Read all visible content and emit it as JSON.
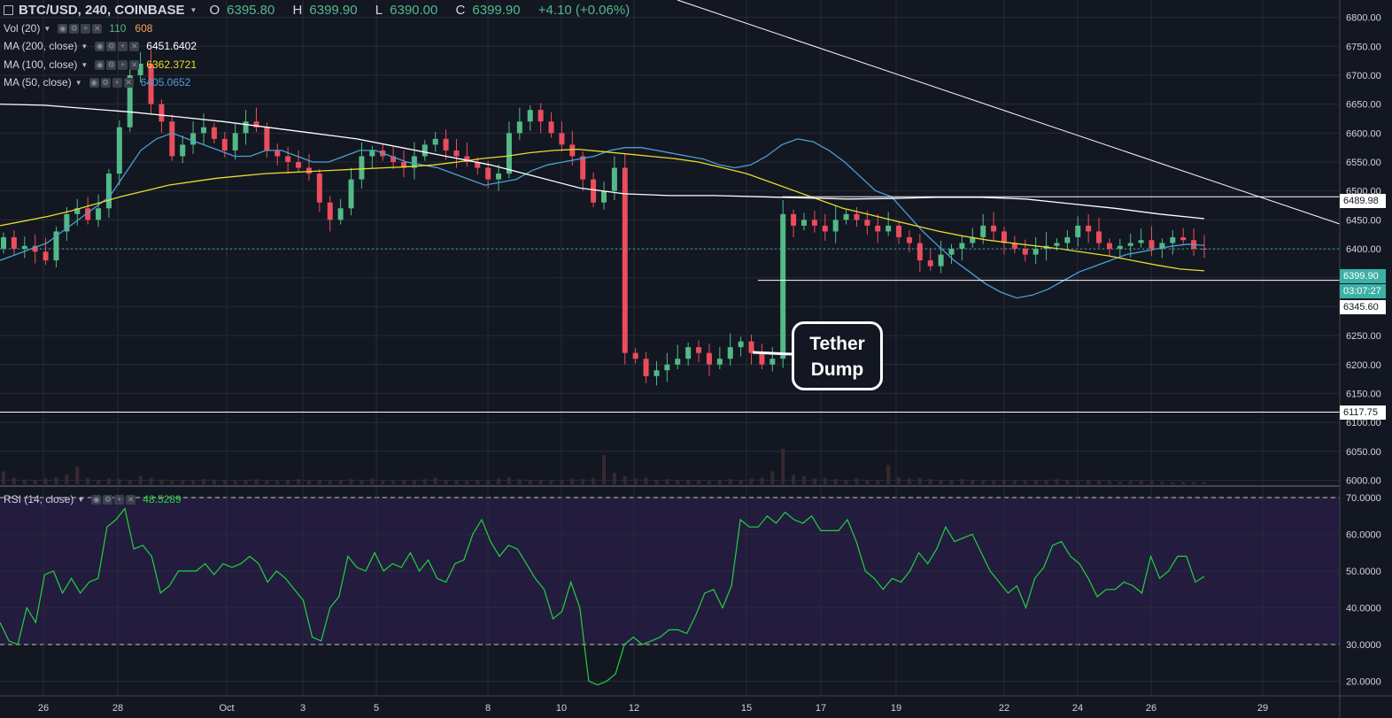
{
  "header": {
    "symbol": "BTC/USD, 240, COINBASE",
    "open_label": "O",
    "open": "6395.80",
    "high_label": "H",
    "high": "6399.90",
    "low_label": "L",
    "low": "6390.00",
    "close_label": "C",
    "close": "6399.90",
    "change": "+4.10 (+0.06%)"
  },
  "indicators": {
    "vol": {
      "label": "Vol (20)",
      "value1": "110",
      "value2": "608"
    },
    "ma200": {
      "label": "MA (200, close)",
      "value": "6451.6402",
      "color": "#ffffff"
    },
    "ma100": {
      "label": "MA (100, close)",
      "value": "6362.3721",
      "color": "#e8dc2a"
    },
    "ma50": {
      "label": "MA (50, close)",
      "value": "6405.0652",
      "color": "#4aa1d3"
    },
    "rsi": {
      "label": "RSI (14, close)",
      "value": "48.5289",
      "color": "#1fd33a"
    }
  },
  "annotation": {
    "line1": "Tether",
    "line2": "Dump"
  },
  "price_tags": {
    "top": "6489.98",
    "current": "6399.90",
    "countdown": "03:07:27",
    "bottom": "6345.60",
    "support": "6117.75"
  },
  "colors": {
    "up": "#53b987",
    "down": "#eb4d5c",
    "background": "#131722",
    "grid": "#262b36",
    "rsi_band": "#2a1f4a"
  },
  "chart_data": {
    "type": "candlestick",
    "interval": "240",
    "price_axis": {
      "ylim": [
        5990,
        6830
      ],
      "ticks": [
        "6000.00",
        "6050.00",
        "6100.00",
        "6150.00",
        "6200.00",
        "6250.00",
        "6300.00",
        "6350.00",
        "6400.00",
        "6450.00",
        "6500.00",
        "6550.00",
        "6600.00",
        "6650.00",
        "6700.00",
        "6750.00",
        "6800.00"
      ]
    },
    "rsi_axis": {
      "ylim": [
        16,
        72
      ],
      "ticks": [
        "20.0000",
        "30.0000",
        "40.0000",
        "50.0000",
        "60.0000",
        "70.0000"
      ],
      "bands": [
        30,
        70
      ]
    },
    "x_labels": [
      "26",
      "28",
      "Oct",
      "3",
      "5",
      "8",
      "10",
      "12",
      "15",
      "17",
      "19",
      "22",
      "24",
      "26",
      "29"
    ],
    "horizontal_levels": [
      6489.98,
      6345.6,
      6117.75
    ],
    "close_series": [
      6420,
      6400,
      6405,
      6395,
      6380,
      6430,
      6460,
      6470,
      6450,
      6470,
      6530,
      6610,
      6700,
      6720,
      6650,
      6620,
      6560,
      6580,
      6600,
      6610,
      6590,
      6570,
      6600,
      6620,
      6610,
      6570,
      6560,
      6550,
      6540,
      6530,
      6480,
      6450,
      6470,
      6520,
      6560,
      6570,
      6560,
      6550,
      6540,
      6560,
      6580,
      6590,
      6570,
      6560,
      6550,
      6540,
      6520,
      6530,
      6600,
      6620,
      6640,
      6620,
      6600,
      6580,
      6560,
      6520,
      6480,
      6500,
      6540,
      6220,
      6210,
      6180,
      6190,
      6200,
      6210,
      6230,
      6220,
      6200,
      6210,
      6230,
      6240,
      6220,
      6200,
      6210,
      6460,
      6440,
      6450,
      6440,
      6430,
      6450,
      6460,
      6450,
      6440,
      6430,
      6440,
      6420,
      6410,
      6380,
      6370,
      6390,
      6400,
      6410,
      6420,
      6440,
      6430,
      6410,
      6400,
      6390,
      6400,
      6405,
      6410,
      6420,
      6440,
      6430,
      6410,
      6400,
      6405,
      6410,
      6415,
      6400,
      6410,
      6420,
      6415,
      6400,
      6399.9
    ],
    "volume_series": [
      40,
      20,
      15,
      12,
      18,
      22,
      30,
      55,
      20,
      14,
      18,
      16,
      12,
      25,
      20,
      15,
      10,
      12,
      14,
      16,
      15,
      12,
      10,
      14,
      16,
      12,
      10,
      14,
      16,
      12,
      14,
      10,
      12,
      16,
      14,
      18,
      12,
      10,
      14,
      12,
      16,
      20,
      14,
      12,
      10,
      12,
      14,
      18,
      22,
      16,
      14,
      12,
      10,
      14,
      18,
      16,
      20,
      90,
      35,
      25,
      18,
      20,
      14,
      16,
      12,
      14,
      12,
      10,
      14,
      16,
      12,
      18,
      20,
      40,
      110,
      30,
      25,
      18,
      20,
      16,
      14,
      18,
      12,
      10,
      60,
      22,
      18,
      20,
      16,
      14,
      12,
      16,
      14,
      12,
      10,
      14,
      12,
      10,
      12,
      14,
      16,
      12,
      10,
      14,
      12,
      10,
      8,
      10,
      12,
      10,
      8,
      6,
      8,
      7,
      6
    ],
    "ma50_series": [
      6380,
      6390,
      6400,
      6410,
      6430,
      6450,
      6470,
      6490,
      6530,
      6570,
      6590,
      6600,
      6590,
      6580,
      6570,
      6560,
      6560,
      6570,
      6570,
      6560,
      6550,
      6550,
      6560,
      6570,
      6570,
      6560,
      6550,
      6545,
      6540,
      6530,
      6520,
      6510,
      6515,
      6520,
      6535,
      6545,
      6550,
      6555,
      6560,
      6570,
      6575,
      6575,
      6570,
      6565,
      6560,
      6555,
      6545,
      6540,
      6545,
      6560,
      6580,
      6590,
      6585,
      6570,
      6550,
      6525,
      6500,
      6490,
      6460,
      6430,
      6405,
      6380,
      6360,
      6340,
      6325,
      6315,
      6320,
      6330,
      6345,
      6360,
      6370,
      6380,
      6390,
      6395,
      6400,
      6405,
      6408,
      6406
    ],
    "ma100_series": [
      6440,
      6448,
      6456,
      6466,
      6478,
      6490,
      6500,
      6510,
      6516,
      6522,
      6526,
      6530,
      6532,
      6534,
      6536,
      6538,
      6540,
      6542,
      6545,
      6550,
      6556,
      6560,
      6566,
      6570,
      6572,
      6568,
      6564,
      6560,
      6556,
      6550,
      6540,
      6530,
      6515,
      6500,
      6485,
      6470,
      6460,
      6450,
      6440,
      6430,
      6422,
      6415,
      6410,
      6405,
      6400,
      6394,
      6388,
      6380,
      6372,
      6365,
      6362
    ],
    "ma200_series": [
      6650,
      6648,
      6642,
      6636,
      6628,
      6620,
      6610,
      6600,
      6590,
      6575,
      6560,
      6545,
      6525,
      6505,
      6495,
      6492,
      6492,
      6490,
      6488,
      6486,
      6487,
      6489,
      6489,
      6486,
      6478,
      6470,
      6460,
      6452
    ],
    "rsi_series": [
      36,
      31,
      30,
      40,
      36,
      49,
      50,
      44,
      48,
      44,
      47,
      48,
      62,
      64,
      67,
      56,
      57,
      54,
      44,
      46,
      50,
      50,
      50,
      52,
      49,
      52,
      51,
      52,
      54,
      52,
      47,
      50,
      48,
      45,
      42,
      32,
      31,
      40,
      43,
      54,
      51,
      50,
      55,
      50,
      52,
      51,
      55,
      50,
      53,
      48,
      47,
      52,
      53,
      60,
      64,
      58,
      54,
      57,
      56,
      52,
      48,
      45,
      37,
      39,
      47,
      40,
      20,
      19,
      20,
      22,
      30,
      32,
      30,
      31,
      32,
      34,
      34,
      33,
      38,
      44,
      45,
      40,
      46,
      64,
      62,
      62,
      65,
      63,
      66,
      64,
      63,
      65,
      61,
      61,
      61,
      64,
      58,
      50,
      48,
      45,
      48,
      47,
      50,
      55,
      52,
      56,
      62,
      58,
      59,
      60,
      55,
      50,
      47,
      44,
      46,
      40,
      48,
      51,
      57,
      58,
      54,
      52,
      48,
      43,
      45,
      45,
      47,
      46,
      44,
      54,
      48,
      50,
      54,
      54,
      47,
      48.5289
    ]
  }
}
